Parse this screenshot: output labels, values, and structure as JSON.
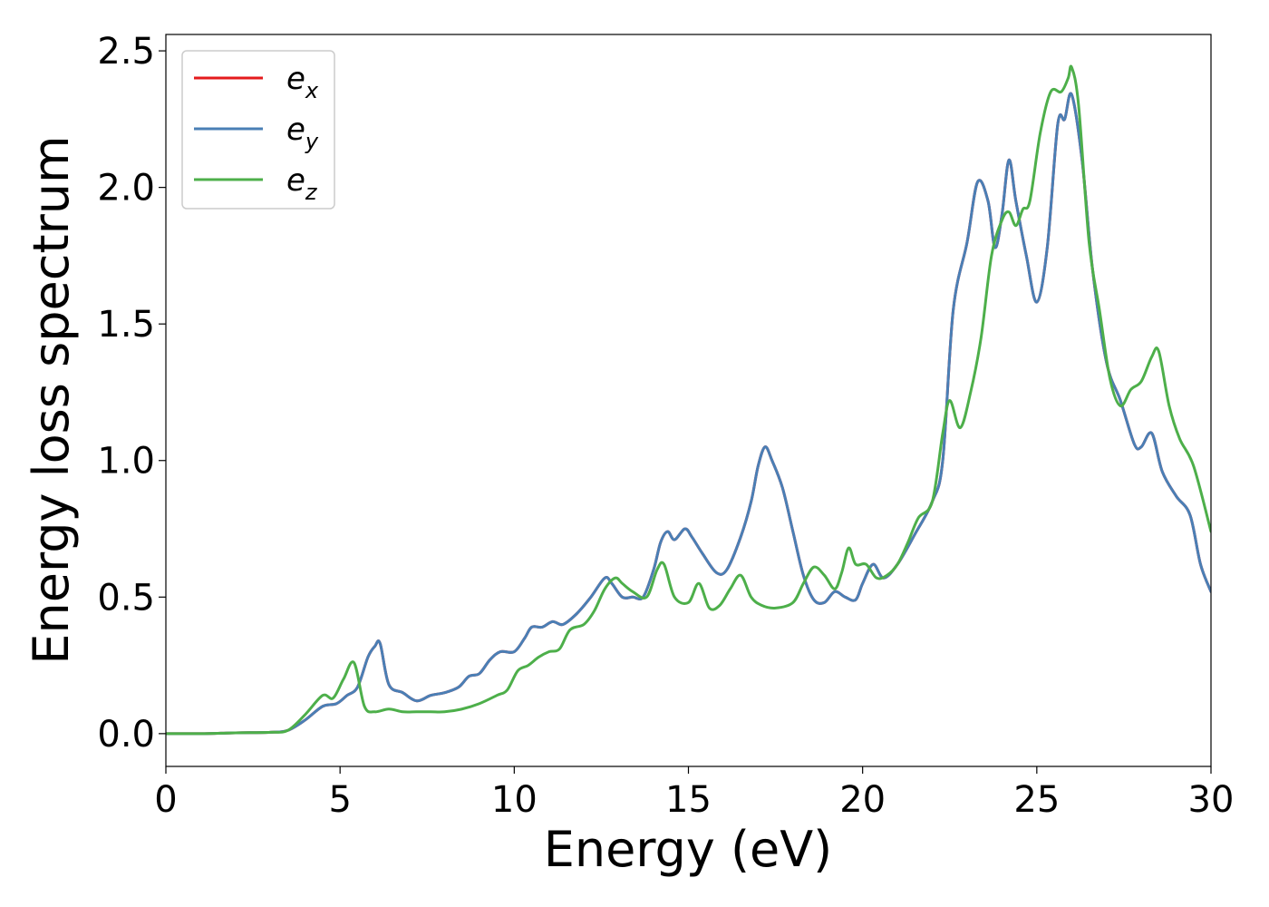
{
  "chart_data": {
    "type": "line",
    "xlabel": "Energy (eV)",
    "ylabel": "Energy loss spectrum",
    "xlim": [
      0,
      30
    ],
    "ylim": [
      -0.12,
      2.56
    ],
    "xticks": [
      0,
      5,
      10,
      15,
      20,
      25,
      30
    ],
    "xtick_labels": [
      "0",
      "5",
      "10",
      "15",
      "20",
      "25",
      "30"
    ],
    "yticks": [
      0.0,
      0.5,
      1.0,
      1.5,
      2.0,
      2.5
    ],
    "ytick_labels": [
      "0.0",
      "0.5",
      "1.0",
      "1.5",
      "2.0",
      "2.5"
    ],
    "grid": false,
    "legend": {
      "position": "top-left",
      "show": true
    },
    "series": [
      {
        "name": "ex",
        "label_base": "e",
        "label_sub": "x",
        "color": "#e41a1c",
        "x": [
          0,
          1,
          2,
          3,
          3.5,
          4,
          4.5,
          4.9,
          5.2,
          5.5,
          5.8,
          6.0,
          6.15,
          6.4,
          6.8,
          7.2,
          7.6,
          8.0,
          8.4,
          8.7,
          9.0,
          9.3,
          9.6,
          10.0,
          10.3,
          10.5,
          10.8,
          11.1,
          11.4,
          11.8,
          12.2,
          12.6,
          12.8,
          13.1,
          13.4,
          13.7,
          14.0,
          14.2,
          14.4,
          14.6,
          14.9,
          15.1,
          15.4,
          15.8,
          16.1,
          16.5,
          16.8,
          17.0,
          17.2,
          17.4,
          17.7,
          18.0,
          18.3,
          18.6,
          18.9,
          19.2,
          19.5,
          19.8,
          20.0,
          20.3,
          20.6,
          21.0,
          21.5,
          22.0,
          22.3,
          22.6,
          23.0,
          23.3,
          23.6,
          23.8,
          24.0,
          24.2,
          24.4,
          24.7,
          25.0,
          25.3,
          25.6,
          25.8,
          26.0,
          26.3,
          26.6,
          27.0,
          27.4,
          27.8,
          28.0,
          28.3,
          28.6,
          29.0,
          29.4,
          29.7,
          30.0
        ],
        "y": [
          0.0,
          0.0,
          0.003,
          0.005,
          0.012,
          0.05,
          0.1,
          0.11,
          0.14,
          0.17,
          0.28,
          0.32,
          0.33,
          0.18,
          0.15,
          0.12,
          0.14,
          0.15,
          0.17,
          0.21,
          0.22,
          0.27,
          0.3,
          0.3,
          0.35,
          0.39,
          0.39,
          0.41,
          0.4,
          0.44,
          0.5,
          0.57,
          0.55,
          0.5,
          0.5,
          0.5,
          0.6,
          0.7,
          0.74,
          0.71,
          0.75,
          0.72,
          0.66,
          0.59,
          0.6,
          0.72,
          0.85,
          0.98,
          1.05,
          1.0,
          0.9,
          0.74,
          0.58,
          0.49,
          0.48,
          0.52,
          0.5,
          0.49,
          0.55,
          0.62,
          0.57,
          0.62,
          0.73,
          0.85,
          1.0,
          1.55,
          1.8,
          2.02,
          1.95,
          1.78,
          1.9,
          2.1,
          1.95,
          1.75,
          1.58,
          1.78,
          2.23,
          2.25,
          2.34,
          2.1,
          1.7,
          1.36,
          1.22,
          1.06,
          1.05,
          1.1,
          0.96,
          0.87,
          0.8,
          0.62,
          0.52
        ]
      },
      {
        "name": "ey",
        "label_base": "e",
        "label_sub": "y",
        "color": "#4a7fb5",
        "x": [
          0,
          1,
          2,
          3,
          3.5,
          4,
          4.5,
          4.9,
          5.2,
          5.5,
          5.8,
          6.0,
          6.15,
          6.4,
          6.8,
          7.2,
          7.6,
          8.0,
          8.4,
          8.7,
          9.0,
          9.3,
          9.6,
          10.0,
          10.3,
          10.5,
          10.8,
          11.1,
          11.4,
          11.8,
          12.2,
          12.6,
          12.8,
          13.1,
          13.4,
          13.7,
          14.0,
          14.2,
          14.4,
          14.6,
          14.9,
          15.1,
          15.4,
          15.8,
          16.1,
          16.5,
          16.8,
          17.0,
          17.2,
          17.4,
          17.7,
          18.0,
          18.3,
          18.6,
          18.9,
          19.2,
          19.5,
          19.8,
          20.0,
          20.3,
          20.6,
          21.0,
          21.5,
          22.0,
          22.3,
          22.6,
          23.0,
          23.3,
          23.6,
          23.8,
          24.0,
          24.2,
          24.4,
          24.7,
          25.0,
          25.3,
          25.6,
          25.8,
          26.0,
          26.3,
          26.6,
          27.0,
          27.4,
          27.8,
          28.0,
          28.3,
          28.6,
          29.0,
          29.4,
          29.7,
          30.0
        ],
        "y": [
          0.0,
          0.0,
          0.003,
          0.005,
          0.012,
          0.05,
          0.1,
          0.11,
          0.14,
          0.17,
          0.28,
          0.32,
          0.33,
          0.18,
          0.15,
          0.12,
          0.14,
          0.15,
          0.17,
          0.21,
          0.22,
          0.27,
          0.3,
          0.3,
          0.35,
          0.39,
          0.39,
          0.41,
          0.4,
          0.44,
          0.5,
          0.57,
          0.55,
          0.5,
          0.5,
          0.5,
          0.6,
          0.7,
          0.74,
          0.71,
          0.75,
          0.72,
          0.66,
          0.59,
          0.6,
          0.72,
          0.85,
          0.98,
          1.05,
          1.0,
          0.9,
          0.74,
          0.58,
          0.49,
          0.48,
          0.52,
          0.5,
          0.49,
          0.55,
          0.62,
          0.57,
          0.62,
          0.73,
          0.85,
          1.0,
          1.55,
          1.8,
          2.02,
          1.95,
          1.78,
          1.9,
          2.1,
          1.95,
          1.75,
          1.58,
          1.78,
          2.23,
          2.25,
          2.34,
          2.1,
          1.7,
          1.36,
          1.22,
          1.06,
          1.05,
          1.1,
          0.96,
          0.87,
          0.8,
          0.62,
          0.52
        ]
      },
      {
        "name": "ez",
        "label_base": "e",
        "label_sub": "z",
        "color": "#4daf4a",
        "x": [
          0,
          1,
          2,
          3,
          3.5,
          4,
          4.5,
          4.8,
          5.1,
          5.4,
          5.7,
          6.0,
          6.4,
          6.8,
          7.2,
          7.6,
          8.0,
          8.5,
          9.0,
          9.5,
          9.8,
          10.1,
          10.4,
          10.7,
          11.0,
          11.3,
          11.6,
          12.0,
          12.3,
          12.6,
          12.9,
          13.1,
          13.4,
          13.8,
          14.1,
          14.3,
          14.6,
          15.0,
          15.3,
          15.6,
          15.9,
          16.2,
          16.5,
          16.8,
          17.1,
          17.5,
          18.0,
          18.3,
          18.6,
          18.9,
          19.2,
          19.4,
          19.6,
          19.8,
          20.1,
          20.4,
          20.7,
          21.0,
          21.3,
          21.6,
          22.0,
          22.3,
          22.5,
          22.8,
          23.1,
          23.4,
          23.7,
          24.0,
          24.2,
          24.4,
          24.6,
          24.8,
          25.1,
          25.4,
          25.7,
          25.9,
          26.0,
          26.2,
          26.5,
          26.8,
          27.1,
          27.4,
          27.7,
          28.0,
          28.3,
          28.5,
          28.8,
          29.1,
          29.5,
          30.0
        ],
        "y": [
          0.0,
          0.0,
          0.003,
          0.005,
          0.012,
          0.07,
          0.14,
          0.13,
          0.2,
          0.26,
          0.1,
          0.08,
          0.09,
          0.08,
          0.08,
          0.08,
          0.08,
          0.09,
          0.11,
          0.14,
          0.16,
          0.23,
          0.25,
          0.28,
          0.3,
          0.31,
          0.38,
          0.4,
          0.45,
          0.53,
          0.57,
          0.55,
          0.52,
          0.5,
          0.6,
          0.62,
          0.5,
          0.48,
          0.55,
          0.46,
          0.47,
          0.53,
          0.58,
          0.5,
          0.47,
          0.46,
          0.48,
          0.55,
          0.61,
          0.58,
          0.53,
          0.59,
          0.68,
          0.62,
          0.62,
          0.57,
          0.58,
          0.62,
          0.7,
          0.79,
          0.85,
          1.1,
          1.22,
          1.12,
          1.25,
          1.45,
          1.75,
          1.88,
          1.91,
          1.86,
          1.92,
          1.95,
          2.2,
          2.35,
          2.35,
          2.4,
          2.44,
          2.3,
          1.8,
          1.55,
          1.3,
          1.2,
          1.26,
          1.29,
          1.38,
          1.4,
          1.2,
          1.08,
          0.98,
          0.74
        ]
      }
    ]
  }
}
